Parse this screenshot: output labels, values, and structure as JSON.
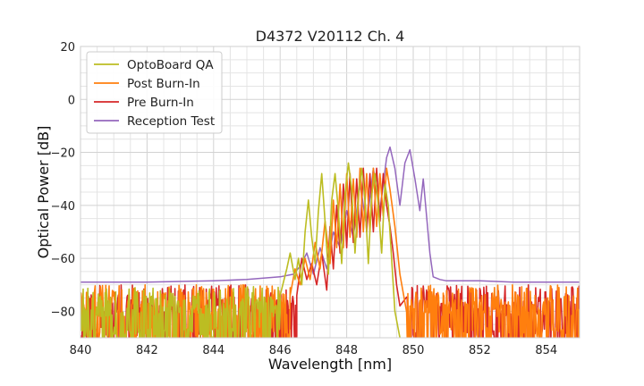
{
  "chart_data": {
    "type": "line",
    "title": "D4372 V20112 Ch. 4",
    "xlabel": "Wavelength [nm]",
    "ylabel": "Optical Power [dB]",
    "xlim": [
      840,
      855
    ],
    "ylim": [
      -90,
      20
    ],
    "xticks": [
      840,
      842,
      844,
      846,
      848,
      850,
      852,
      854
    ],
    "yticks": [
      -80,
      -60,
      -40,
      -20,
      0,
      20
    ],
    "ytick_labels": [
      "−80",
      "−60",
      "−40",
      "−20",
      "0",
      "20"
    ],
    "grid": true,
    "legend_position": "top-left",
    "series": [
      {
        "name": "OptoBoard QA",
        "color": "#bcbd22",
        "style": "noisy",
        "noise_x": [
          840.0,
          846.0
        ],
        "x": [
          846.0,
          846.2,
          846.3,
          846.45,
          846.55,
          846.65,
          846.75,
          846.85,
          846.95,
          847.05,
          847.15,
          847.25,
          847.35,
          847.45,
          847.55,
          847.65,
          847.75,
          847.85,
          847.95,
          848.05,
          848.15,
          848.25,
          848.35,
          848.45,
          848.55,
          848.65,
          848.75,
          848.85,
          848.95,
          849.05,
          849.15,
          849.25,
          849.35,
          849.45,
          849.6
        ],
        "y": [
          -74,
          -64,
          -58,
          -68,
          -60,
          -70,
          -50,
          -38,
          -52,
          -62,
          -42,
          -28,
          -46,
          -66,
          -38,
          -28,
          -42,
          -62,
          -36,
          -24,
          -34,
          -58,
          -36,
          -26,
          -38,
          -62,
          -36,
          -28,
          -40,
          -58,
          -32,
          -40,
          -60,
          -80,
          -90
        ]
      },
      {
        "name": "Post Burn-In",
        "color": "#ff7f0e",
        "style": "noisy",
        "noise_x": [
          840.0,
          846.3
        ],
        "x": [
          846.3,
          846.45,
          846.6,
          846.75,
          846.9,
          847.05,
          847.2,
          847.35,
          847.5,
          847.6,
          847.7,
          847.8,
          847.9,
          848.0,
          848.1,
          848.2,
          848.3,
          848.4,
          848.5,
          848.6,
          848.7,
          848.8,
          848.9,
          849.0,
          849.1,
          849.2,
          849.3,
          849.45,
          849.6,
          849.8,
          850.0,
          850.5,
          851.0,
          855.0
        ],
        "y": [
          -74,
          -64,
          -70,
          -60,
          -68,
          -54,
          -64,
          -46,
          -62,
          -38,
          -56,
          -32,
          -56,
          -28,
          -52,
          -30,
          -52,
          -26,
          -50,
          -28,
          -50,
          -26,
          -48,
          -28,
          -44,
          -26,
          -34,
          -48,
          -66,
          -80,
          -82,
          -82,
          -82,
          -82
        ]
      },
      {
        "name": "Pre Burn-In",
        "color": "#d62728",
        "style": "noisy",
        "noise_x": [
          840.0,
          846.5
        ],
        "x": [
          846.5,
          846.65,
          846.8,
          846.95,
          847.1,
          847.25,
          847.4,
          847.5,
          847.6,
          847.7,
          847.8,
          847.9,
          848.0,
          848.1,
          848.2,
          848.3,
          848.4,
          848.5,
          848.6,
          848.7,
          848.8,
          848.9,
          849.0,
          849.1,
          849.2,
          849.3,
          849.4,
          849.5,
          849.6,
          849.8,
          850.0,
          850.5,
          851.0,
          855.0
        ],
        "y": [
          -74,
          -60,
          -68,
          -62,
          -70,
          -58,
          -72,
          -48,
          -64,
          -40,
          -58,
          -32,
          -56,
          -28,
          -54,
          -30,
          -52,
          -26,
          -50,
          -28,
          -50,
          -26,
          -46,
          -28,
          -40,
          -48,
          -58,
          -70,
          -78,
          -82,
          -82,
          -82,
          -82,
          -82
        ]
      },
      {
        "name": "Reception Test",
        "color": "#9467bd",
        "style": "smooth",
        "x": [
          840.0,
          842.0,
          844.0,
          845.0,
          846.0,
          846.4,
          846.6,
          846.8,
          847.0,
          847.2,
          847.4,
          847.6,
          847.8,
          848.0,
          848.2,
          848.4,
          848.6,
          848.8,
          849.0,
          849.2,
          849.3,
          849.45,
          849.6,
          849.75,
          849.9,
          850.05,
          850.2,
          850.3,
          850.4,
          850.5,
          850.6,
          850.8,
          851.0,
          852.0,
          853.0,
          854.0,
          855.0
        ],
        "y": [
          -69,
          -69,
          -68.5,
          -68,
          -67,
          -66,
          -63,
          -58,
          -66,
          -56,
          -64,
          -50,
          -56,
          -42,
          -52,
          -32,
          -48,
          -26,
          -42,
          -22,
          -18,
          -26,
          -40,
          -24,
          -19,
          -30,
          -42,
          -30,
          -44,
          -58,
          -67,
          -68,
          -68.5,
          -68.5,
          -69,
          -69,
          -69
        ]
      }
    ]
  }
}
